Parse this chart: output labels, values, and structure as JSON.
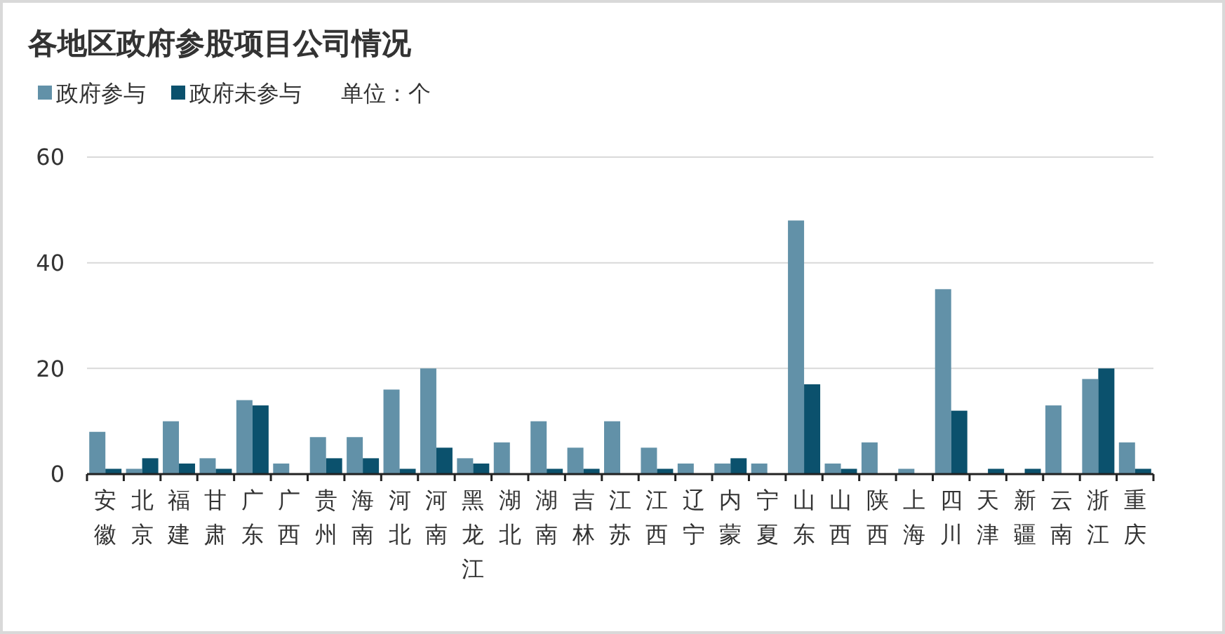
{
  "chart_data": {
    "type": "bar",
    "title": "各地区政府参股项目公司情况",
    "categories": [
      "安徽",
      "北京",
      "福建",
      "甘肃",
      "广东",
      "广西",
      "贵州",
      "海南",
      "河北",
      "河南",
      "黑龙江",
      "湖北",
      "湖南",
      "吉林",
      "江苏",
      "江西",
      "辽宁",
      "内蒙",
      "宁夏",
      "山东",
      "山西",
      "陕西",
      "上海",
      "四川",
      "天津",
      "新疆",
      "云南",
      "浙江",
      "重庆"
    ],
    "series": [
      {
        "name": "政府参与",
        "color": "#6291a8",
        "values": [
          8,
          1,
          10,
          3,
          14,
          2,
          7,
          7,
          16,
          20,
          3,
          6,
          10,
          5,
          10,
          5,
          2,
          2,
          2,
          48,
          2,
          6,
          1,
          35,
          0,
          0,
          13,
          18,
          6
        ]
      },
      {
        "name": "政府未参与",
        "color": "#0b516d",
        "values": [
          1,
          3,
          2,
          1,
          13,
          0,
          3,
          3,
          1,
          5,
          2,
          0,
          1,
          1,
          0,
          1,
          0,
          3,
          0,
          17,
          1,
          0,
          0,
          12,
          1,
          1,
          0,
          20,
          1
        ]
      }
    ],
    "ylim": [
      0,
      60
    ],
    "yticks": [
      0,
      20,
      40,
      60
    ],
    "grid": "y",
    "legend": "top left",
    "annotations": [
      "单位：个"
    ]
  }
}
